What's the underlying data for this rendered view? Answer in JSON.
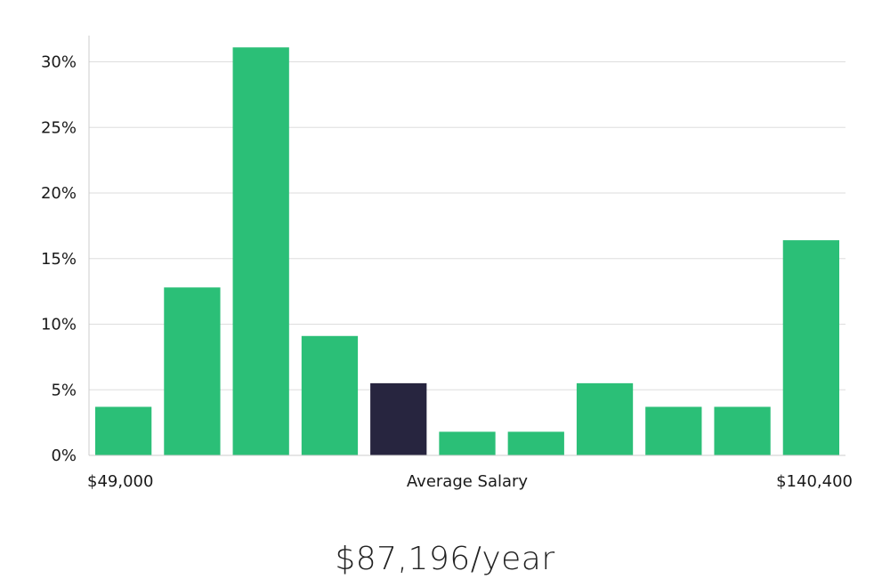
{
  "chart_data": {
    "type": "bar",
    "values": [
      3.7,
      12.8,
      31.1,
      9.1,
      5.5,
      1.8,
      1.8,
      5.5,
      3.7,
      3.7,
      16.4
    ],
    "highlight_index": 4,
    "ylim": [
      0,
      32
    ],
    "yticks": [
      0,
      5,
      10,
      15,
      20,
      25,
      30
    ],
    "ytick_suffix": "%",
    "x_labels": {
      "left": "$49,000",
      "center": "Average Salary",
      "right": "$140,400"
    },
    "grid": true,
    "colors": {
      "bar": "#2bbf77",
      "highlight": "#27253f",
      "grid": "#dddddd",
      "axis": "#cccccc"
    }
  },
  "summary": {
    "salary_text": "$87,196/year"
  }
}
